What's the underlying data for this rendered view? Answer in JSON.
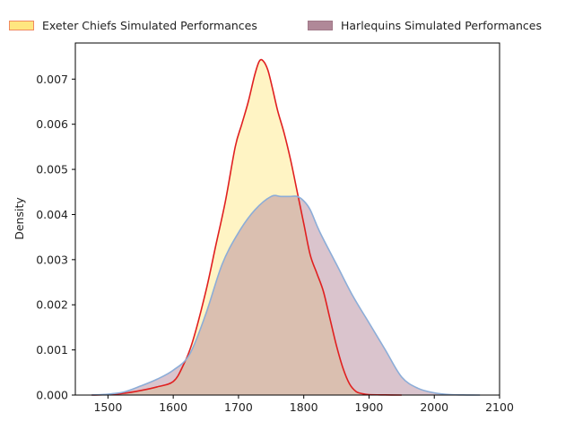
{
  "chart_data": {
    "type": "area",
    "ylabel": "Density",
    "xlabel": "",
    "xlim": [
      1450,
      2100
    ],
    "ylim": [
      0,
      0.0078
    ],
    "xticks": [
      1500,
      1600,
      1700,
      1800,
      1900,
      2000,
      2100
    ],
    "yticks": [
      0.0,
      0.001,
      0.002,
      0.003,
      0.004,
      0.005,
      0.006,
      0.007
    ],
    "legend_position": "top-center",
    "series": [
      {
        "name": "Exeter Chiefs Simulated Performances",
        "fill": "#fff0b0",
        "line": "#e02020",
        "x": [
          1475,
          1500,
          1525,
          1550,
          1575,
          1600,
          1615,
          1630,
          1650,
          1665,
          1680,
          1695,
          1705,
          1715,
          1725,
          1732,
          1738,
          1745,
          1752,
          1760,
          1770,
          1780,
          1790,
          1800,
          1810,
          1820,
          1830,
          1840,
          1850,
          1860,
          1870,
          1880,
          1890,
          1900,
          1925,
          1950
        ],
        "y": [
          0.0,
          1e-05,
          4e-05,
          0.0001,
          0.00018,
          0.0003,
          0.00065,
          0.0012,
          0.0023,
          0.0033,
          0.0043,
          0.0055,
          0.006,
          0.0065,
          0.0071,
          0.0074,
          0.0074,
          0.0072,
          0.0068,
          0.0063,
          0.0058,
          0.0052,
          0.0045,
          0.0038,
          0.0031,
          0.0027,
          0.0023,
          0.0017,
          0.0011,
          0.0006,
          0.00025,
          8e-05,
          3e-05,
          1e-05,
          3e-06,
          0.0
        ]
      },
      {
        "name": "Harlequins Simulated Performances",
        "fill": "#b5899b",
        "line": "#8cadd8",
        "x": [
          1475,
          1500,
          1525,
          1550,
          1575,
          1600,
          1625,
          1650,
          1675,
          1700,
          1725,
          1750,
          1765,
          1780,
          1790,
          1800,
          1810,
          1825,
          1850,
          1875,
          1900,
          1925,
          1950,
          1975,
          2000,
          2025,
          2050,
          2070
        ],
        "y": [
          0.0,
          2e-05,
          7e-05,
          0.0002,
          0.00035,
          0.00055,
          0.0009,
          0.0018,
          0.0029,
          0.0036,
          0.0041,
          0.0044,
          0.0044,
          0.0044,
          0.0044,
          0.0043,
          0.0041,
          0.0036,
          0.0029,
          0.0022,
          0.0016,
          0.001,
          0.0004,
          0.00015,
          5e-05,
          1e-05,
          2e-06,
          0.0
        ]
      }
    ]
  }
}
